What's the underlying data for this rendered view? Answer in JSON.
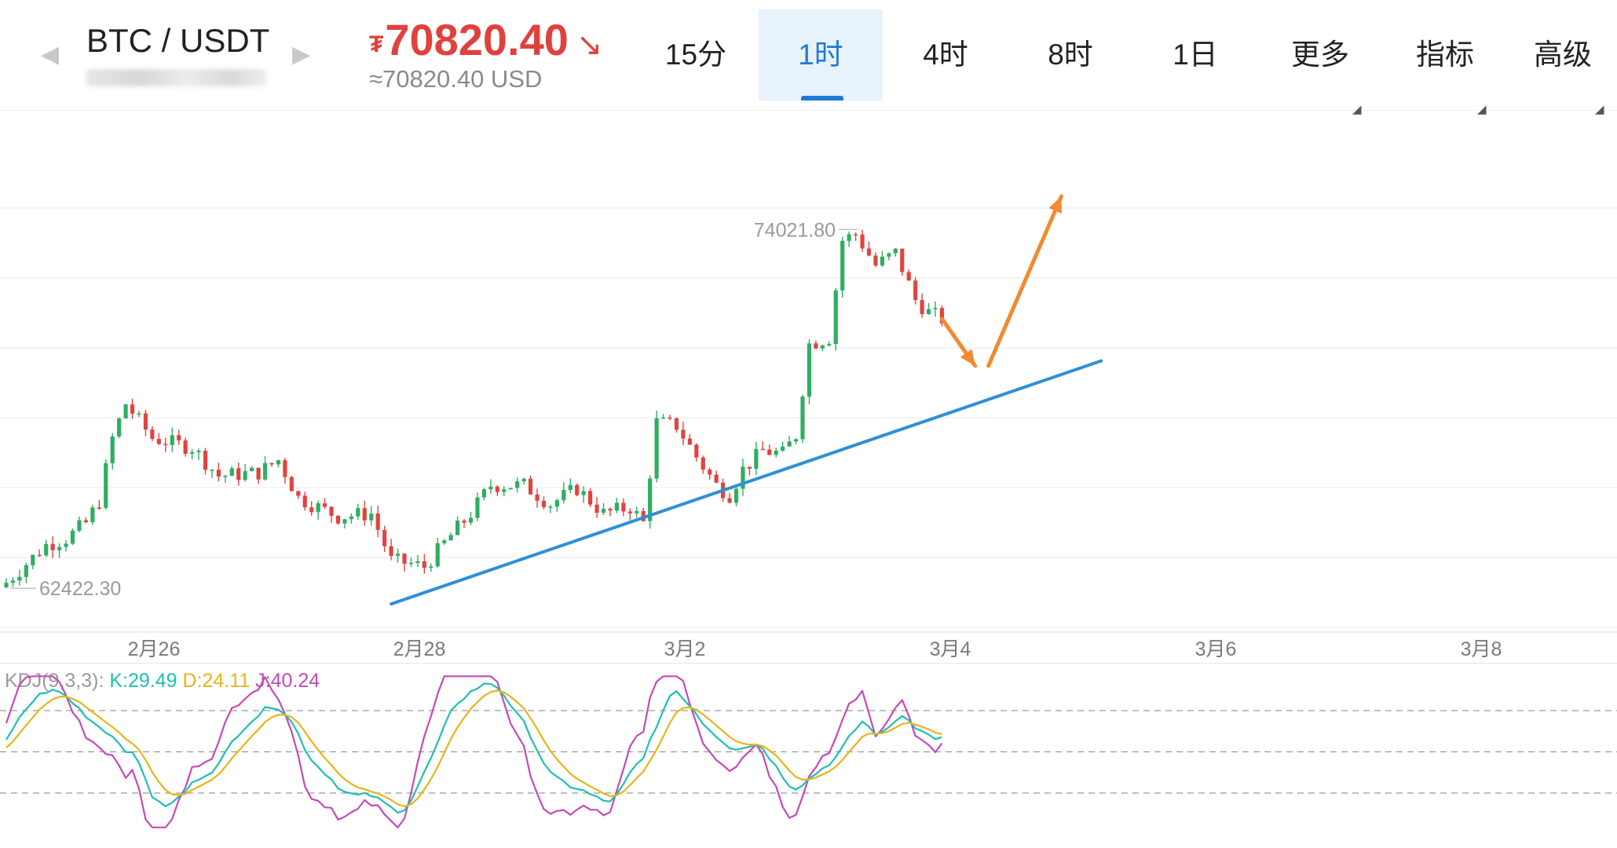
{
  "header": {
    "pair": "BTC / USDT",
    "price_symbol": "₮",
    "price": "70820.40",
    "price_direction": "↘",
    "price_usd": "≈70820.40 USD",
    "nav_prev_icon": "◀",
    "nav_next_icon": "▶",
    "tabs": [
      "15分",
      "1时",
      "4时",
      "8时",
      "1日",
      "更多",
      "指标",
      "高级"
    ],
    "active_tab": "1时",
    "colors": {
      "price": "#e0413d",
      "accent": "#1f7ad8"
    }
  },
  "chart_data": [
    {
      "type": "candlestick",
      "title": "",
      "interval": "1时",
      "x_ticks": [
        "2月26",
        "2月28",
        "3月2",
        "3月4",
        "3月6",
        "3月8"
      ],
      "annotations": [
        {
          "kind": "max_label",
          "text": "74021.80",
          "value": 74021.8
        },
        {
          "kind": "min_label",
          "text": "62422.30",
          "value": 62422.3
        }
      ],
      "grid": true,
      "colors": {
        "up": "#2fae62",
        "down": "#e0443f",
        "trendline": "#2f8fd6",
        "arrow": "#f28a30"
      },
      "series_close_approx": [
        [
          0,
          62700
        ],
        [
          6,
          63900
        ],
        [
          9,
          64100
        ],
        [
          12,
          64600
        ],
        [
          14,
          65300
        ],
        [
          16,
          67300
        ],
        [
          18,
          68400
        ],
        [
          22,
          67300
        ],
        [
          28,
          67000
        ],
        [
          32,
          66100
        ],
        [
          38,
          66200
        ],
        [
          41,
          66600
        ],
        [
          44,
          65400
        ],
        [
          50,
          64800
        ],
        [
          55,
          64900
        ],
        [
          58,
          63400
        ],
        [
          61,
          63300
        ],
        [
          63,
          63200
        ],
        [
          67,
          64200
        ],
        [
          70,
          64900
        ],
        [
          73,
          65800
        ],
        [
          78,
          65800
        ],
        [
          82,
          65200
        ],
        [
          86,
          65700
        ],
        [
          90,
          64900
        ],
        [
          94,
          65100
        ],
        [
          96,
          64600
        ],
        [
          98,
          67800
        ],
        [
          101,
          67700
        ],
        [
          104,
          66700
        ],
        [
          107,
          65800
        ],
        [
          109,
          65500
        ],
        [
          111,
          66300
        ],
        [
          114,
          66900
        ],
        [
          117,
          66800
        ],
        [
          119,
          67400
        ],
        [
          121,
          70300
        ],
        [
          124,
          70500
        ],
        [
          126,
          73600
        ],
        [
          128,
          73800
        ],
        [
          131,
          72800
        ],
        [
          134,
          73200
        ],
        [
          137,
          71700
        ],
        [
          139,
          71300
        ],
        [
          141,
          71100
        ]
      ],
      "trendline": {
        "from": {
          "x": 58,
          "y": 62020
        },
        "to": {
          "x": 165,
          "y": 69760
        }
      },
      "projection_arrows": [
        {
          "from": {
            "x": 141,
            "y": 71100
          },
          "to": {
            "x": 146,
            "y": 69600
          }
        },
        {
          "from": {
            "x": 148,
            "y": 69600
          },
          "to": {
            "x": 159,
            "y": 75000
          }
        }
      ]
    },
    {
      "type": "line",
      "title": "KDJ(9,3,3)",
      "legend": [
        "K:29.49",
        "D:24.11",
        "J:40.24"
      ],
      "series": [
        {
          "name": "K:29.49",
          "color": "#1fbfb0"
        },
        {
          "name": "D:24.11",
          "color": "#e8b418"
        },
        {
          "name": "J:40.24",
          "color": "#c44ab8"
        }
      ],
      "reference_lines": [
        80,
        50,
        20
      ]
    }
  ]
}
